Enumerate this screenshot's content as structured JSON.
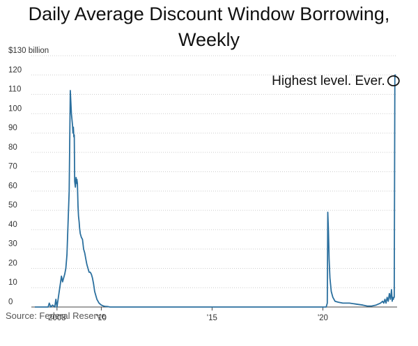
{
  "chart_data": {
    "type": "line",
    "title": "Daily Average Discount Window Borrowing, Weekly",
    "ylabel": "",
    "xlabel": "",
    "y_unit_label": "$130 billion",
    "ylim": [
      0,
      130
    ],
    "xlim": [
      2007.0,
      2023.35
    ],
    "grid": "horizontal",
    "y_ticks": [
      {
        "value": 0,
        "label": "0"
      },
      {
        "value": 10,
        "label": "10"
      },
      {
        "value": 20,
        "label": "20"
      },
      {
        "value": 30,
        "label": "30"
      },
      {
        "value": 40,
        "label": "40"
      },
      {
        "value": 50,
        "label": "50"
      },
      {
        "value": 60,
        "label": "60"
      },
      {
        "value": 70,
        "label": "70"
      },
      {
        "value": 80,
        "label": "80"
      },
      {
        "value": 90,
        "label": "90"
      },
      {
        "value": 100,
        "label": "100"
      },
      {
        "value": 110,
        "label": "110"
      },
      {
        "value": 120,
        "label": "120"
      },
      {
        "value": 130,
        "label": "$130 billion"
      }
    ],
    "x_ticks": [
      {
        "value": 2008,
        "label": "2008"
      },
      {
        "value": 2010,
        "label": "'10"
      },
      {
        "value": 2015,
        "label": "'15"
      },
      {
        "value": 2020,
        "label": "'20"
      }
    ],
    "series": [
      {
        "color": "#2a6f9e",
        "x": [
          2007.0,
          2007.6,
          2007.65,
          2007.72,
          2007.8,
          2007.9,
          2007.95,
          2008.0,
          2008.1,
          2008.15,
          2008.2,
          2008.25,
          2008.35,
          2008.4,
          2008.45,
          2008.55,
          2008.6,
          2008.65,
          2008.7,
          2008.72,
          2008.74,
          2008.76,
          2008.78,
          2008.8,
          2008.83,
          2008.86,
          2008.88,
          2008.9,
          2008.92,
          2008.95,
          2008.97,
          2009.0,
          2009.02,
          2009.05,
          2009.1,
          2009.15,
          2009.2,
          2009.25,
          2009.3,
          2009.35,
          2009.4,
          2009.45,
          2009.5,
          2009.55,
          2009.6,
          2009.65,
          2009.7,
          2009.8,
          2009.9,
          2010.0,
          2010.1,
          2010.2,
          2010.3,
          2010.35,
          2010.4,
          2010.5,
          2011.0,
          2012.0,
          2014.0,
          2016.0,
          2018.0,
          2019.5,
          2020.0,
          2020.15,
          2020.2,
          2020.22,
          2020.25,
          2020.28,
          2020.32,
          2020.38,
          2020.45,
          2020.55,
          2020.7,
          2020.9,
          2021.2,
          2021.5,
          2021.8,
          2022.0,
          2022.2,
          2022.4,
          2022.5,
          2022.6,
          2022.7,
          2022.75,
          2022.8,
          2022.85,
          2022.9,
          2022.95,
          2023.0,
          2023.05,
          2023.1,
          2023.13,
          2023.15,
          2023.18,
          2023.2,
          2023.22,
          2023.25,
          2023.3
        ],
        "values": [
          0,
          0,
          2,
          0,
          1,
          0,
          4,
          0,
          8,
          12,
          16,
          13,
          17,
          20,
          27,
          60,
          112,
          100,
          94,
          90,
          93,
          88,
          89,
          65,
          62,
          67,
          64,
          66,
          64,
          52,
          47,
          44,
          41,
          38,
          36,
          35,
          30,
          28,
          25,
          22,
          20,
          18,
          18,
          17,
          15,
          12,
          8,
          4,
          2,
          1,
          0.5,
          0.3,
          0.2,
          0.1,
          0,
          0,
          0,
          0,
          0,
          0,
          0,
          0,
          0,
          0,
          2,
          49,
          40,
          25,
          15,
          8,
          5,
          3,
          2.5,
          2,
          2,
          1.5,
          1,
          0.5,
          0.5,
          1,
          1.5,
          2,
          3,
          2,
          4,
          2,
          5,
          3,
          7,
          4,
          9,
          3,
          5,
          4,
          5,
          5,
          120,
          120
        ]
      }
    ],
    "annotations": [
      {
        "text": "Highest level. Ever.",
        "x": 2023.25,
        "y": 117
      }
    ]
  },
  "source": "Source: Federal Reserve"
}
